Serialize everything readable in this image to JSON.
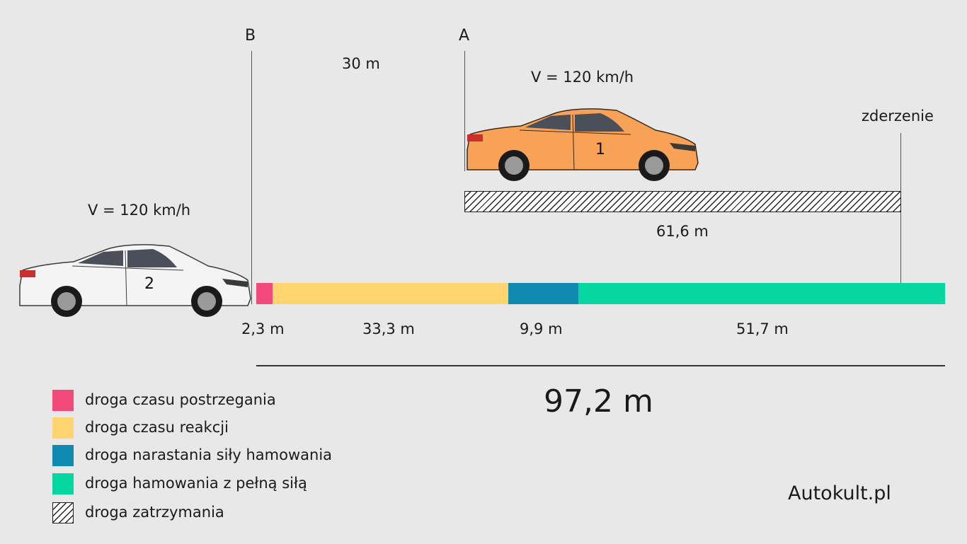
{
  "markers": {
    "a": "A",
    "b": "B",
    "collision": "zderzenie"
  },
  "gap_label": "30 m",
  "car1": {
    "speed_label": "V = 120 km/h",
    "number": "1",
    "color": "#f7a256"
  },
  "car2": {
    "speed_label": "V = 120 km/h",
    "number": "2",
    "color": "#f4f4f4"
  },
  "stopping_distance_label": "61,6 m",
  "segments": [
    {
      "label": "2,3 m",
      "value": 2.3,
      "color": "#f0497a"
    },
    {
      "label": "33,3 m",
      "value": 33.3,
      "color": "#ffd36e"
    },
    {
      "label": "9,9 m",
      "value": 9.9,
      "color": "#118ab2"
    },
    {
      "label": "51,7 m",
      "value": 51.7,
      "color": "#06d6a0"
    }
  ],
  "total_label": "97,2 m",
  "legend": [
    {
      "label": "droga czasu postrzegania",
      "color": "#f0497a"
    },
    {
      "label": "droga czasu reakcji",
      "color": "#ffd36e"
    },
    {
      "label": "droga narastania siły hamowania",
      "color": "#118ab2"
    },
    {
      "label": "droga hamowania z pełną siłą",
      "color": "#06d6a0"
    },
    {
      "label": "droga zatrzymania",
      "color": "hatched"
    }
  ],
  "brand": "Autokult.pl"
}
